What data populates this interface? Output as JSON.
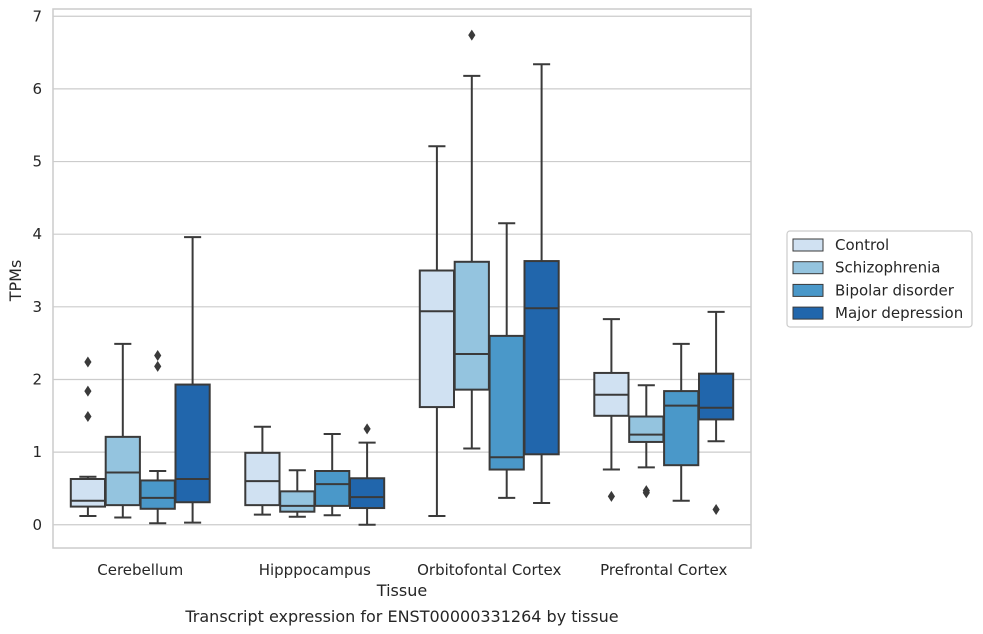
{
  "chart_data": {
    "type": "box",
    "xlabel": "Tissue",
    "ylabel": "TPMs",
    "caption": "Transcript expression for ENST00000331264 by tissue",
    "ylim": [
      -0.32,
      7.1
    ],
    "yticks": [
      "0",
      "1",
      "2",
      "3",
      "4",
      "5",
      "6",
      "7"
    ],
    "grid": true,
    "legend_position": "right",
    "categories": [
      "Cerebellum",
      "Hipppocampus",
      "Orbitofontal Cortex",
      "Prefrontal Cortex"
    ],
    "series": [
      {
        "name": "Control",
        "color": "#d0e1f2",
        "boxes": [
          {
            "whislo": 0.12,
            "q1": 0.25,
            "med": 0.33,
            "q3": 0.63,
            "whishi": 0.66,
            "fliers": [
              2.24,
              1.84,
              1.49
            ]
          },
          {
            "whislo": 0.14,
            "q1": 0.27,
            "med": 0.6,
            "q3": 0.99,
            "whishi": 1.35,
            "fliers": []
          },
          {
            "whislo": 0.12,
            "q1": 1.62,
            "med": 2.94,
            "q3": 3.5,
            "whishi": 5.21,
            "fliers": []
          },
          {
            "whislo": 0.76,
            "q1": 1.5,
            "med": 1.79,
            "q3": 2.09,
            "whishi": 2.83,
            "fliers": [
              0.39
            ]
          }
        ]
      },
      {
        "name": "Schizophrenia",
        "color": "#94c4df",
        "boxes": [
          {
            "whislo": 0.1,
            "q1": 0.27,
            "med": 0.72,
            "q3": 1.21,
            "whishi": 2.49,
            "fliers": []
          },
          {
            "whislo": 0.11,
            "q1": 0.18,
            "med": 0.26,
            "q3": 0.46,
            "whishi": 0.75,
            "fliers": []
          },
          {
            "whislo": 1.05,
            "q1": 1.86,
            "med": 2.35,
            "q3": 3.62,
            "whishi": 6.18,
            "fliers": [
              6.74
            ]
          },
          {
            "whislo": 0.79,
            "q1": 1.14,
            "med": 1.24,
            "q3": 1.49,
            "whishi": 1.92,
            "fliers": [
              0.47,
              0.44
            ]
          }
        ]
      },
      {
        "name": "Bipolar disorder",
        "color": "#4a98c9",
        "boxes": [
          {
            "whislo": 0.02,
            "q1": 0.22,
            "med": 0.37,
            "q3": 0.61,
            "whishi": 0.74,
            "fliers": [
              2.33,
              2.18
            ]
          },
          {
            "whislo": 0.13,
            "q1": 0.26,
            "med": 0.56,
            "q3": 0.74,
            "whishi": 1.25,
            "fliers": []
          },
          {
            "whislo": 0.37,
            "q1": 0.76,
            "med": 0.93,
            "q3": 2.6,
            "whishi": 4.15,
            "fliers": []
          },
          {
            "whislo": 0.33,
            "q1": 0.82,
            "med": 1.64,
            "q3": 1.84,
            "whishi": 2.49,
            "fliers": []
          }
        ]
      },
      {
        "name": "Major depression",
        "color": "#2166ac",
        "boxes": [
          {
            "whislo": 0.03,
            "q1": 0.31,
            "med": 0.63,
            "q3": 1.93,
            "whishi": 3.96,
            "fliers": []
          },
          {
            "whislo": 0.0,
            "q1": 0.23,
            "med": 0.38,
            "q3": 0.64,
            "whishi": 1.13,
            "fliers": [
              1.32
            ]
          },
          {
            "whislo": 0.3,
            "q1": 0.97,
            "med": 2.98,
            "q3": 3.63,
            "whishi": 6.34,
            "fliers": []
          },
          {
            "whislo": 1.15,
            "q1": 1.45,
            "med": 1.61,
            "q3": 2.08,
            "whishi": 2.93,
            "fliers": [
              0.21
            ]
          }
        ]
      }
    ]
  }
}
